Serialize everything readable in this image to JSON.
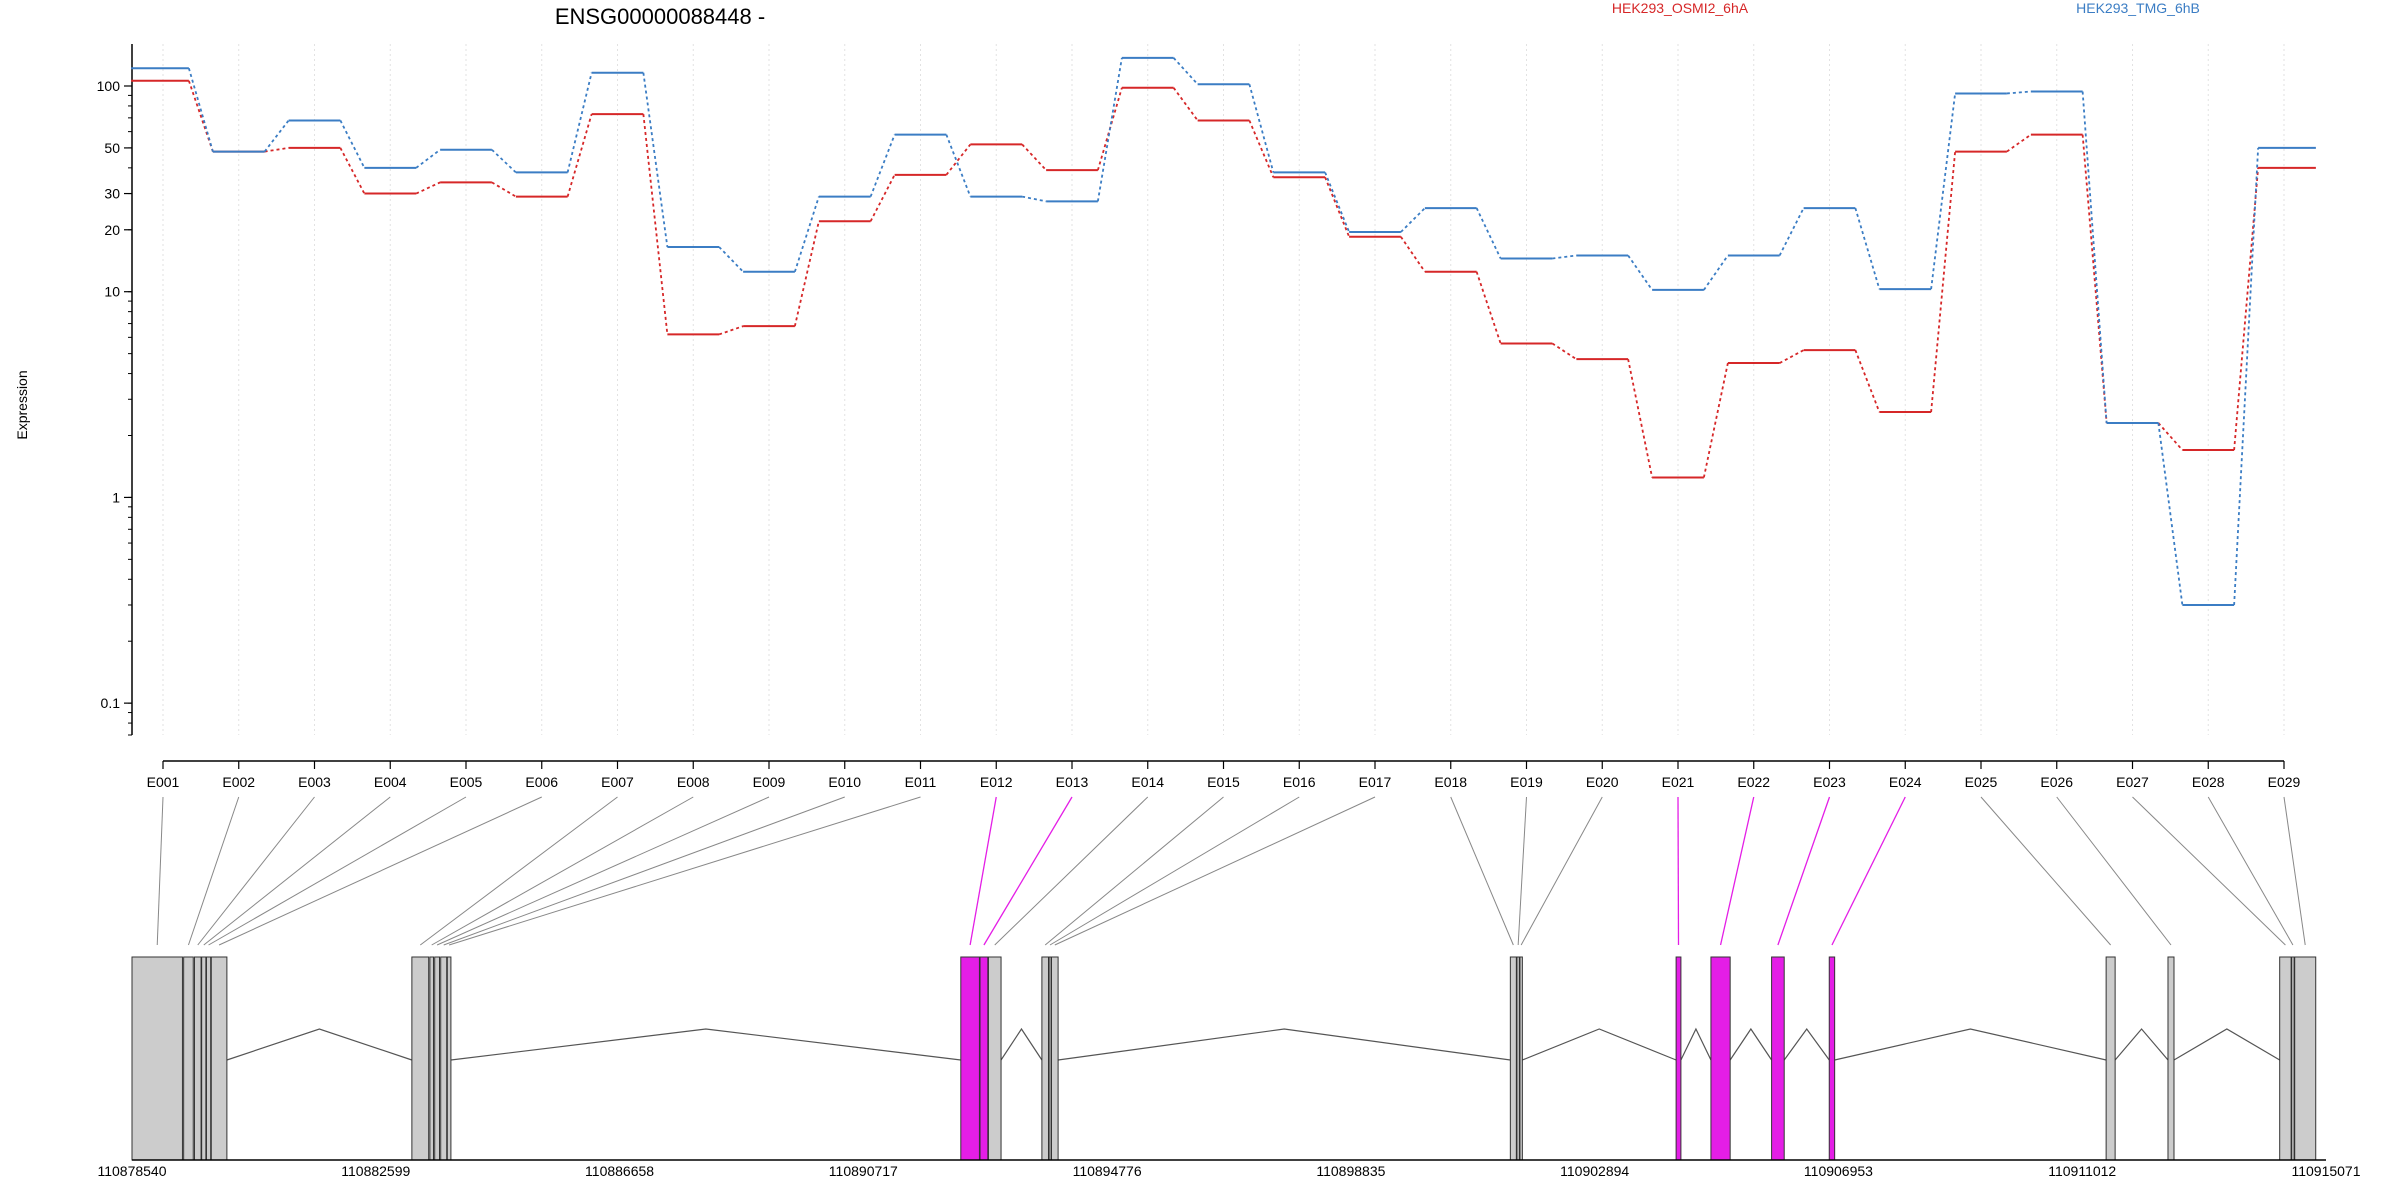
{
  "title": "ENSG00000088448 -",
  "ylabel": "Expression",
  "legend": [
    {
      "name": "HEK293_OSMI2_6hA",
      "color": "#d62728"
    },
    {
      "name": "HEK293_TMG_6hB",
      "color": "#3b7dc4"
    }
  ],
  "colors": {
    "highlight": "#e41ee6",
    "exon_fill": "#cccccc",
    "axis": "#000000",
    "connector": "#888888"
  },
  "chart_data": {
    "type": "line",
    "title": "ENSG00000088448 -",
    "ylabel": "Expression",
    "yscale": "log",
    "ylim": [
      0.07,
      160
    ],
    "yticks": [
      0.1,
      1,
      10,
      20,
      30,
      50,
      100
    ],
    "ytick_labels": [
      "0.1",
      "1",
      "10",
      "20",
      "30",
      "50",
      "100"
    ],
    "categories": [
      "E001",
      "E002",
      "E003",
      "E004",
      "E005",
      "E006",
      "E007",
      "E008",
      "E009",
      "E010",
      "E011",
      "E012",
      "E013",
      "E014",
      "E015",
      "E016",
      "E017",
      "E018",
      "E019",
      "E020",
      "E021",
      "E022",
      "E023",
      "E024",
      "E025",
      "E026",
      "E027",
      "E028",
      "E029"
    ],
    "series": [
      {
        "name": "HEK293_OSMI2_6hA",
        "color": "#d62728",
        "values": [
          106,
          48,
          50,
          30,
          34,
          29,
          73,
          6.2,
          6.8,
          22,
          37,
          52,
          39,
          98,
          68,
          36,
          18.5,
          12.5,
          5.6,
          4.7,
          1.25,
          4.5,
          5.2,
          2.6,
          48,
          58,
          2.3,
          1.7,
          40
        ]
      },
      {
        "name": "HEK293_TMG_6hB",
        "color": "#3b7dc4",
        "values": [
          122,
          48,
          68,
          40,
          49,
          38,
          116,
          16.5,
          12.5,
          29,
          58,
          29,
          27.5,
          137,
          102,
          38,
          19.5,
          25.5,
          14.5,
          15,
          10.2,
          15,
          25.5,
          10.3,
          92,
          94,
          2.3,
          0.3,
          50
        ]
      }
    ],
    "highlighted_exons": [
      "E012",
      "E013",
      "E021",
      "E022",
      "E023",
      "E024"
    ],
    "gene_model": {
      "genomic_ticks": [
        "110878540",
        "110882599",
        "110886658",
        "110890717",
        "110894776",
        "110898835",
        "110902894",
        "110906953",
        "110911012",
        "110915071"
      ],
      "genomic_range": [
        110878540,
        110915071
      ],
      "exons": [
        {
          "id": "E001",
          "start": 110878540,
          "end": 110879380
        },
        {
          "id": "E002",
          "start": 110879400,
          "end": 110879560
        },
        {
          "id": "E003",
          "start": 110879580,
          "end": 110879690
        },
        {
          "id": "E004",
          "start": 110879700,
          "end": 110879770
        },
        {
          "id": "E005",
          "start": 110879780,
          "end": 110879850
        },
        {
          "id": "E006",
          "start": 110879860,
          "end": 110880120
        },
        {
          "id": "E007",
          "start": 110883200,
          "end": 110883480
        },
        {
          "id": "E008",
          "start": 110883500,
          "end": 110883560
        },
        {
          "id": "E009",
          "start": 110883580,
          "end": 110883660
        },
        {
          "id": "E010",
          "start": 110883680,
          "end": 110883780
        },
        {
          "id": "E011",
          "start": 110883790,
          "end": 110883850
        },
        {
          "id": "E012",
          "start": 110892340,
          "end": 110892650
        },
        {
          "id": "E013",
          "start": 110892660,
          "end": 110892790
        },
        {
          "id": "E014",
          "start": 110892800,
          "end": 110893010
        },
        {
          "id": "E015",
          "start": 110893690,
          "end": 110893800
        },
        {
          "id": "E016",
          "start": 110893810,
          "end": 110893840
        },
        {
          "id": "E017",
          "start": 110893850,
          "end": 110893960
        },
        {
          "id": "E018",
          "start": 110901490,
          "end": 110901590
        },
        {
          "id": "E019",
          "start": 110901600,
          "end": 110901640
        },
        {
          "id": "E020",
          "start": 110901650,
          "end": 110901690
        },
        {
          "id": "E021",
          "start": 110904250,
          "end": 110904330
        },
        {
          "id": "E022",
          "start": 110904830,
          "end": 110905150
        },
        {
          "id": "E023",
          "start": 110905840,
          "end": 110906050
        },
        {
          "id": "E024",
          "start": 110906800,
          "end": 110906890
        },
        {
          "id": "E025",
          "start": 110911410,
          "end": 110911560
        },
        {
          "id": "E026",
          "start": 110912440,
          "end": 110912540
        },
        {
          "id": "E027",
          "start": 110914300,
          "end": 110914490
        },
        {
          "id": "E028",
          "start": 110914500,
          "end": 110914540
        },
        {
          "id": "E029",
          "start": 110914550,
          "end": 110914900
        }
      ]
    }
  }
}
